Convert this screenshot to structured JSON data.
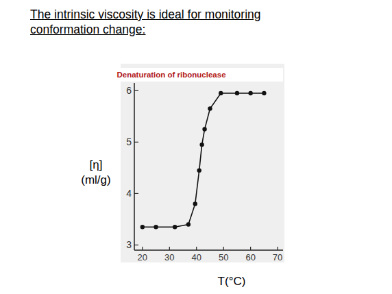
{
  "heading": [
    "The intrinsic viscosity is ideal for monitoring",
    "conformation change:"
  ],
  "chart_data": {
    "type": "line",
    "title": "Denaturation of ribonuclease",
    "y_label": [
      "[η]",
      "(ml/g)"
    ],
    "x_label": "T(°C)",
    "x": [
      20,
      25,
      32,
      37,
      39.5,
      41,
      42,
      43,
      45,
      49,
      55,
      60,
      65
    ],
    "values": [
      3.35,
      3.35,
      3.35,
      3.4,
      3.8,
      4.45,
      4.95,
      5.25,
      5.65,
      5.95,
      5.95,
      5.95,
      5.95
    ],
    "color": "#111111",
    "marker": "circle",
    "line_style": "solid",
    "xlim": [
      17,
      72
    ],
    "xticks": [
      20,
      30,
      40,
      50,
      60,
      70
    ],
    "ylim": [
      2.9,
      6.15
    ],
    "yticks": [
      3,
      4,
      5,
      6
    ],
    "grid": false
  }
}
